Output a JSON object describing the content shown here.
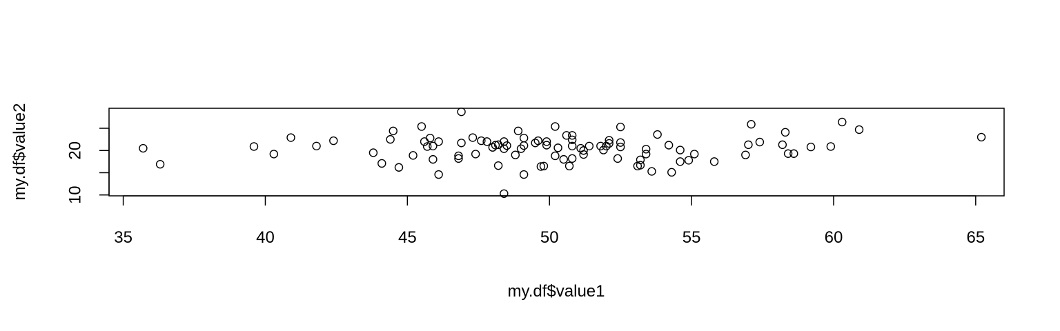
{
  "chart_data": {
    "type": "scatter",
    "title": "",
    "xlabel": "my.df$value1",
    "ylabel": "my.df$value2",
    "xlim": [
      34.5,
      66.0
    ],
    "ylim": [
      9.8,
      29.5
    ],
    "x_ticks": [
      35,
      40,
      45,
      50,
      55,
      60,
      65
    ],
    "y_ticks": [
      10,
      15,
      20,
      25
    ],
    "y_tick_labels": [
      "10",
      "",
      "20",
      ""
    ],
    "grid": false,
    "legend": "none",
    "marker": "open-circle",
    "points": [
      [
        35.7,
        20.5
      ],
      [
        36.3,
        16.9
      ],
      [
        39.6,
        20.9
      ],
      [
        40.3,
        19.2
      ],
      [
        40.9,
        22.9
      ],
      [
        41.8,
        21.0
      ],
      [
        42.4,
        22.2
      ],
      [
        43.8,
        19.5
      ],
      [
        44.1,
        17.1
      ],
      [
        44.4,
        22.5
      ],
      [
        44.5,
        24.4
      ],
      [
        44.7,
        16.2
      ],
      [
        45.2,
        18.9
      ],
      [
        45.5,
        25.4
      ],
      [
        45.6,
        22.0
      ],
      [
        45.7,
        20.9
      ],
      [
        45.8,
        22.8
      ],
      [
        45.9,
        18.0
      ],
      [
        45.9,
        21.0
      ],
      [
        46.1,
        14.6
      ],
      [
        46.1,
        22.0
      ],
      [
        46.8,
        18.8
      ],
      [
        46.8,
        18.2
      ],
      [
        46.9,
        28.7
      ],
      [
        46.9,
        21.7
      ],
      [
        47.3,
        22.9
      ],
      [
        47.4,
        19.2
      ],
      [
        47.6,
        22.2
      ],
      [
        47.8,
        22.0
      ],
      [
        48.0,
        20.7
      ],
      [
        48.1,
        21.2
      ],
      [
        48.2,
        16.6
      ],
      [
        48.2,
        21.3
      ],
      [
        48.4,
        22.0
      ],
      [
        48.4,
        20.4
      ],
      [
        48.4,
        10.3
      ],
      [
        48.5,
        21.1
      ],
      [
        48.8,
        19.0
      ],
      [
        48.9,
        24.4
      ],
      [
        49.0,
        20.4
      ],
      [
        49.1,
        21.1
      ],
      [
        49.1,
        22.8
      ],
      [
        49.1,
        14.6
      ],
      [
        49.5,
        21.7
      ],
      [
        49.6,
        22.2
      ],
      [
        49.7,
        16.4
      ],
      [
        49.8,
        16.5
      ],
      [
        49.9,
        21.2
      ],
      [
        49.9,
        22.0
      ],
      [
        50.2,
        18.8
      ],
      [
        50.2,
        25.4
      ],
      [
        50.3,
        20.6
      ],
      [
        50.5,
        18.0
      ],
      [
        50.6,
        23.4
      ],
      [
        50.7,
        16.5
      ],
      [
        50.8,
        23.4
      ],
      [
        50.8,
        22.4
      ],
      [
        50.8,
        21.0
      ],
      [
        50.8,
        18.2
      ],
      [
        51.1,
        20.5
      ],
      [
        51.2,
        20.0
      ],
      [
        51.2,
        19.1
      ],
      [
        51.4,
        21.0
      ],
      [
        51.8,
        21.0
      ],
      [
        51.9,
        20.1
      ],
      [
        52.0,
        21.0
      ],
      [
        52.1,
        22.3
      ],
      [
        52.1,
        21.6
      ],
      [
        52.4,
        18.2
      ],
      [
        52.5,
        25.3
      ],
      [
        52.5,
        21.8
      ],
      [
        52.5,
        20.8
      ],
      [
        53.1,
        16.5
      ],
      [
        53.2,
        16.7
      ],
      [
        53.2,
        17.9
      ],
      [
        53.4,
        20.3
      ],
      [
        53.4,
        19.2
      ],
      [
        53.6,
        15.3
      ],
      [
        53.8,
        23.6
      ],
      [
        54.2,
        21.2
      ],
      [
        54.3,
        15.1
      ],
      [
        54.6,
        20.1
      ],
      [
        54.6,
        17.5
      ],
      [
        54.9,
        17.8
      ],
      [
        55.1,
        19.2
      ],
      [
        55.8,
        17.5
      ],
      [
        56.9,
        19.0
      ],
      [
        57.0,
        21.3
      ],
      [
        57.1,
        25.9
      ],
      [
        57.4,
        21.9
      ],
      [
        58.2,
        21.3
      ],
      [
        58.3,
        24.1
      ],
      [
        58.4,
        19.3
      ],
      [
        58.6,
        19.3
      ],
      [
        59.2,
        20.8
      ],
      [
        59.9,
        20.9
      ],
      [
        60.3,
        26.4
      ],
      [
        60.9,
        24.7
      ],
      [
        65.2,
        23.0
      ]
    ]
  }
}
